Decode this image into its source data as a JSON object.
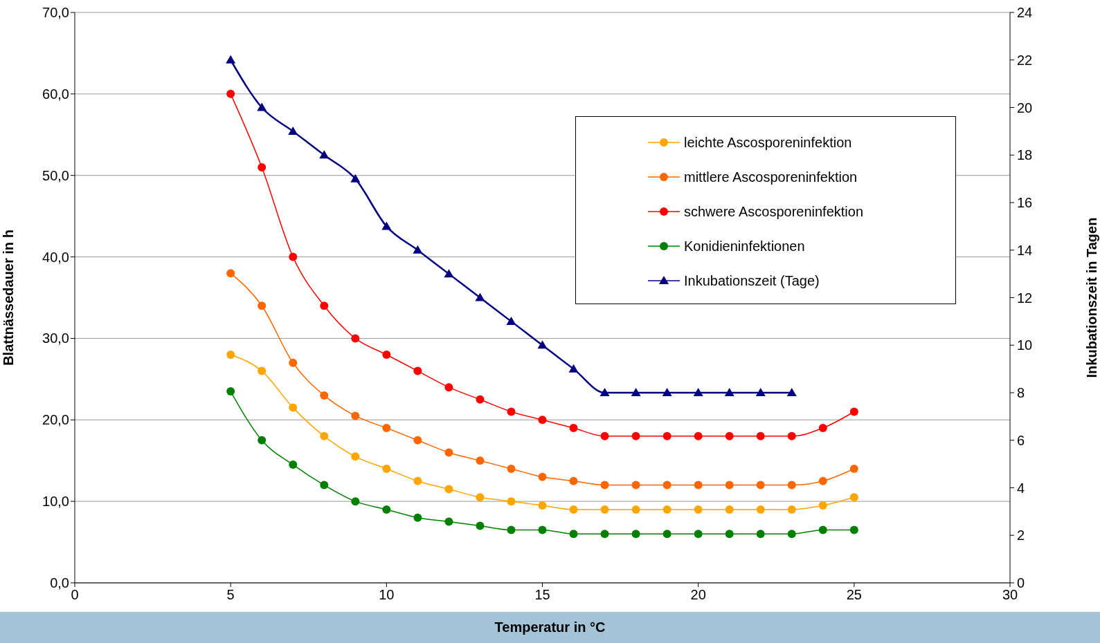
{
  "chart_data": {
    "type": "line",
    "xlabel": "Temperatur in °C",
    "ylabel": "Blattnässedauer in h",
    "y2label": "Inkubationszeit in Tagen",
    "x": [
      5,
      6,
      7,
      8,
      9,
      10,
      11,
      12,
      13,
      14,
      15,
      16,
      17,
      18,
      19,
      20,
      21,
      22,
      23,
      24,
      25
    ],
    "xlim": [
      0,
      30
    ],
    "xticks": [
      0,
      5,
      10,
      15,
      20,
      25,
      30
    ],
    "ylim": [
      0,
      70
    ],
    "yticks": [
      {
        "value": 0,
        "label": "0,0"
      },
      {
        "value": 10,
        "label": "10,0"
      },
      {
        "value": 20,
        "label": "20,0"
      },
      {
        "value": 30,
        "label": "30,0"
      },
      {
        "value": 40,
        "label": "40,0"
      },
      {
        "value": 50,
        "label": "50,0"
      },
      {
        "value": 60,
        "label": "60,0"
      },
      {
        "value": 70,
        "label": "70,0"
      }
    ],
    "y2lim": [
      0,
      24
    ],
    "y2ticks": [
      0,
      2,
      4,
      6,
      8,
      10,
      12,
      14,
      16,
      18,
      20,
      22,
      24
    ],
    "grid": "y",
    "legend": "top right",
    "line_style": "solid",
    "series": [
      {
        "name": "leichte Ascosporeninfektion",
        "color": "#ffa500",
        "marker": "circle",
        "values": [
          28,
          26,
          21.5,
          18,
          15.5,
          14,
          12.5,
          11.5,
          10.5,
          10,
          9.5,
          9,
          9,
          9,
          9,
          9,
          9,
          9,
          9,
          9.5,
          10.5
        ]
      },
      {
        "name": "mittlere Ascosporeninfektion",
        "color": "#ff6600",
        "marker": "circle",
        "values": [
          38,
          34,
          27,
          23,
          20.5,
          19,
          17.5,
          16,
          15,
          14,
          13,
          12.5,
          12,
          12,
          12,
          12,
          12,
          12,
          12,
          12.5,
          14
        ]
      },
      {
        "name": "schwere Ascosporeninfektion",
        "color": "#ff0000",
        "marker": "circle",
        "values": [
          60,
          51,
          40,
          34,
          30,
          28,
          26,
          24,
          22.5,
          21,
          20,
          19,
          18,
          18,
          18,
          18,
          18,
          18,
          18,
          19,
          21
        ]
      },
      {
        "name": "Konidieninfektionen",
        "color": "#008000",
        "marker": "circle",
        "values": [
          23.5,
          17.5,
          14.5,
          12,
          10,
          9,
          8,
          7.5,
          7,
          6.5,
          6.5,
          6,
          6,
          6,
          6,
          6,
          6,
          6,
          6,
          6.5,
          6.5
        ]
      },
      {
        "name": "Inkubationszeit (Tage)",
        "color": "#000080",
        "marker": "triangle",
        "axis": "y2",
        "x": [
          5,
          6,
          7,
          8,
          9,
          10,
          11,
          12,
          13,
          14,
          15,
          16,
          17,
          18,
          19,
          20,
          21,
          22,
          23
        ],
        "values": [
          22,
          20,
          19,
          18,
          17,
          15,
          14,
          13,
          12,
          11,
          10,
          9,
          8,
          8,
          8,
          8,
          8,
          8,
          8
        ]
      }
    ]
  }
}
